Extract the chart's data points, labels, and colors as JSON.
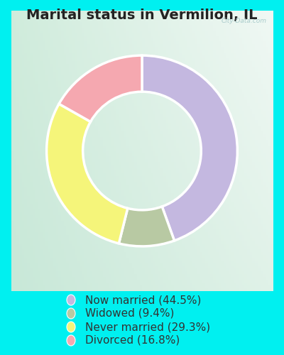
{
  "title": "Marital status in Vermilion, IL",
  "slices": [
    44.5,
    9.4,
    29.3,
    16.8
  ],
  "labels": [
    "Now married (44.5%)",
    "Widowed (9.4%)",
    "Never married (29.3%)",
    "Divorced (16.8%)"
  ],
  "colors": [
    "#c4b8e0",
    "#b8c9a3",
    "#f5f57a",
    "#f5a8b0"
  ],
  "outer_bg": "#00f0f0",
  "chart_bg_tl": "#d8ede0",
  "chart_bg_br": "#e8f5e8",
  "legend_bg": "#00f0f0",
  "title_fontsize": 14,
  "legend_fontsize": 11,
  "start_angle": 90,
  "donut_width": 0.38,
  "watermark": "City-Data.com",
  "watermark_color": "#aacccc",
  "title_color": "#222222",
  "legend_text_color": "#333333"
}
